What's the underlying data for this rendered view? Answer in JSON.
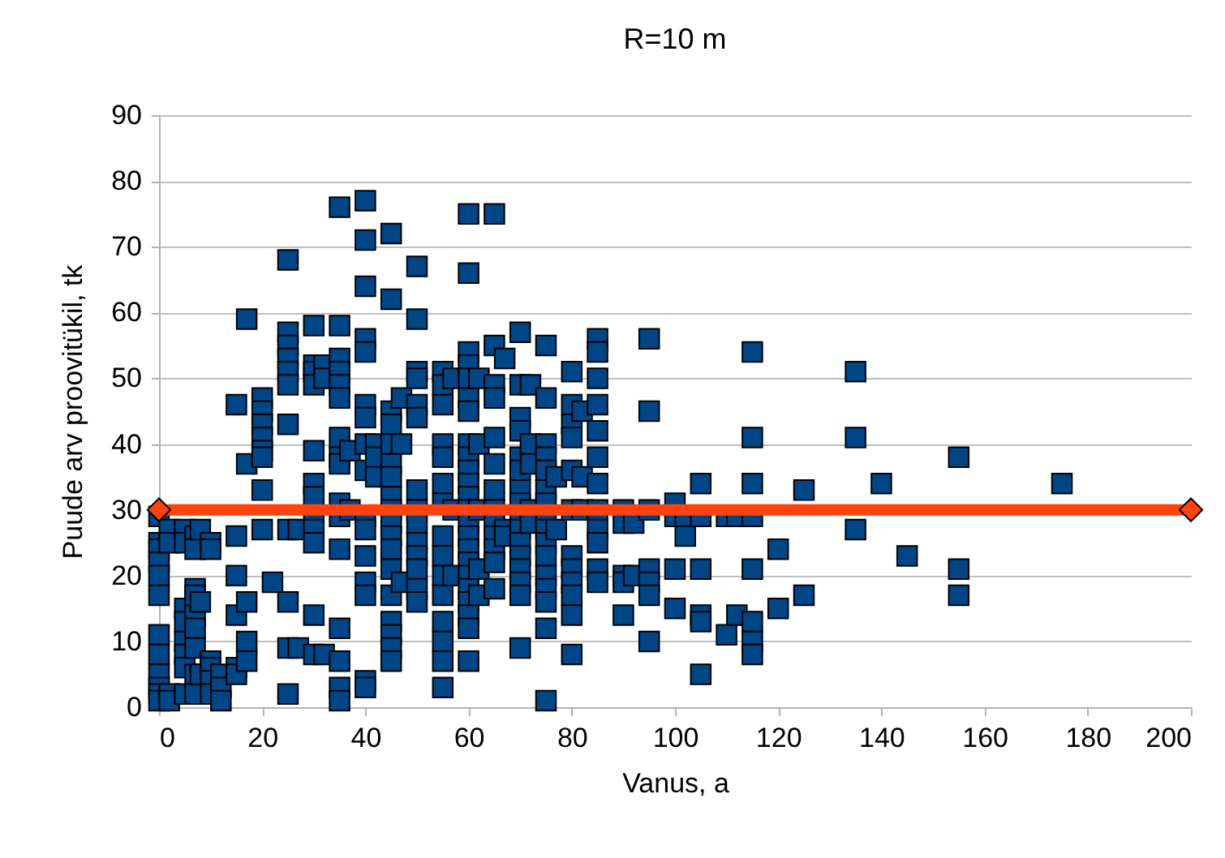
{
  "chart_data": {
    "type": "scatter",
    "title": "R=10 m",
    "xlabel": "Vanus, a",
    "ylabel": "Puude arv proovitükil, tk",
    "xlim": [
      0,
      200
    ],
    "xticks": [
      0,
      20,
      40,
      60,
      80,
      100,
      120,
      140,
      160,
      180,
      200
    ],
    "ylim": [
      0,
      90
    ],
    "yticks": [
      0,
      10,
      20,
      30,
      40,
      50,
      60,
      70,
      80,
      90
    ],
    "grid": "y",
    "series": [
      {
        "color": "#004586",
        "marker": "square",
        "x": [
          0,
          0,
          0,
          0,
          0,
          0,
          0,
          0,
          0,
          0,
          0,
          0,
          2,
          2,
          2,
          2,
          5,
          5,
          5,
          5,
          5,
          5,
          5,
          5,
          7,
          7,
          7,
          7,
          7,
          7,
          7,
          7,
          7,
          8,
          8,
          8,
          10,
          10,
          10,
          10,
          10,
          10,
          12,
          12,
          12,
          15,
          15,
          15,
          15,
          15,
          15,
          17,
          17,
          17,
          17,
          17,
          20,
          20,
          20,
          20,
          20,
          20,
          20,
          20,
          22,
          25,
          25,
          25,
          25,
          25,
          25,
          25,
          25,
          25,
          25,
          25,
          27,
          27,
          30,
          30,
          30,
          30,
          30,
          30,
          30,
          30,
          30,
          30,
          30,
          30,
          32,
          32,
          32,
          35,
          35,
          35,
          35,
          35,
          35,
          35,
          35,
          35,
          35,
          35,
          35,
          35,
          35,
          35,
          35,
          37,
          37,
          40,
          40,
          40,
          40,
          40,
          40,
          40,
          40,
          40,
          40,
          40,
          40,
          40,
          40,
          40,
          40,
          42,
          42,
          42,
          45,
          45,
          45,
          45,
          45,
          45,
          45,
          45,
          45,
          45,
          45,
          45,
          45,
          45,
          45,
          45,
          45,
          45,
          47,
          47,
          47,
          50,
          50,
          50,
          50,
          50,
          50,
          50,
          50,
          50,
          50,
          50,
          50,
          50,
          50,
          55,
          55,
          55,
          55,
          55,
          55,
          55,
          55,
          55,
          55,
          55,
          55,
          55,
          55,
          55,
          57,
          57,
          57,
          60,
          60,
          60,
          60,
          60,
          60,
          60,
          60,
          60,
          60,
          60,
          60,
          60,
          60,
          60,
          60,
          60,
          60,
          60,
          60,
          60,
          60,
          60,
          62,
          62,
          62,
          62,
          62,
          65,
          65,
          65,
          65,
          65,
          65,
          65,
          65,
          65,
          65,
          65,
          65,
          65,
          67,
          67,
          67,
          70,
          70,
          70,
          70,
          70,
          70,
          70,
          70,
          70,
          70,
          70,
          70,
          70,
          70,
          70,
          70,
          72,
          72,
          72,
          72,
          72,
          75,
          75,
          75,
          75,
          75,
          75,
          75,
          75,
          75,
          75,
          75,
          75,
          75,
          75,
          75,
          75,
          77,
          77,
          80,
          80,
          80,
          80,
          80,
          80,
          80,
          80,
          80,
          80,
          80,
          80,
          82,
          82,
          82,
          85,
          85,
          85,
          85,
          85,
          85,
          85,
          85,
          85,
          85,
          85,
          85,
          90,
          90,
          90,
          90,
          90,
          92,
          92,
          95,
          95,
          95,
          95,
          95,
          95,
          95,
          100,
          100,
          100,
          100,
          102,
          102,
          105,
          105,
          105,
          105,
          105,
          105,
          110,
          110,
          112,
          112,
          115,
          115,
          115,
          115,
          115,
          115,
          115,
          115,
          120,
          120,
          125,
          125,
          135,
          135,
          135,
          140,
          145,
          155,
          155,
          155,
          175
        ],
        "values": [
          29,
          25,
          24,
          22,
          20,
          17,
          11,
          8,
          5,
          3,
          2,
          1,
          27,
          25,
          2,
          1,
          27,
          25,
          15,
          13,
          10,
          8,
          6,
          2,
          26,
          24,
          18,
          17,
          14,
          12,
          9,
          5,
          2,
          27,
          16,
          5,
          25,
          24,
          7,
          6,
          4,
          2,
          5,
          3,
          1,
          46,
          26,
          20,
          14,
          6,
          5,
          59,
          37,
          16,
          10,
          7,
          47,
          45,
          43,
          41,
          39,
          38,
          33,
          27,
          19,
          68,
          57,
          55,
          53,
          51,
          49,
          43,
          27,
          16,
          9,
          2,
          27,
          9,
          58,
          52,
          51,
          49,
          39,
          34,
          32,
          29,
          27,
          25,
          14,
          8,
          52,
          50,
          8,
          76,
          58,
          53,
          51,
          49,
          47,
          41,
          38,
          37,
          31,
          29,
          24,
          12,
          7,
          3,
          1,
          39,
          30,
          77,
          71,
          64,
          56,
          54,
          46,
          44,
          40,
          36,
          29,
          27,
          23,
          19,
          17,
          4,
          3,
          40,
          38,
          35,
          72,
          62,
          45,
          43,
          40,
          37,
          35,
          32,
          30,
          28,
          26,
          24,
          21,
          17,
          13,
          11,
          9,
          7,
          47,
          40,
          19,
          67,
          59,
          51,
          50,
          46,
          44,
          33,
          30,
          28,
          25,
          23,
          21,
          18,
          16,
          51,
          49,
          46,
          40,
          38,
          34,
          31,
          26,
          23,
          20,
          17,
          13,
          10,
          7,
          3,
          50,
          30,
          20,
          75,
          66,
          54,
          52,
          50,
          47,
          45,
          40,
          38,
          36,
          34,
          32,
          30,
          28,
          26,
          24,
          22,
          20,
          18,
          16,
          14,
          12,
          7,
          50,
          40,
          30,
          21,
          17,
          75,
          55,
          49,
          47,
          41,
          37,
          33,
          30,
          28,
          26,
          24,
          22,
          18,
          53,
          27,
          26,
          57,
          49,
          44,
          42,
          38,
          36,
          33,
          31,
          29,
          27,
          25,
          23,
          21,
          19,
          17,
          9,
          49,
          40,
          37,
          30,
          28,
          55,
          47,
          40,
          38,
          36,
          33,
          31,
          29,
          27,
          25,
          23,
          20,
          18,
          16,
          12,
          1,
          35,
          27,
          51,
          46,
          43,
          41,
          36,
          30,
          23,
          21,
          19,
          17,
          14,
          8,
          45,
          35,
          30,
          56,
          54,
          50,
          46,
          42,
          38,
          34,
          30,
          27,
          25,
          21,
          19,
          30,
          28,
          20,
          19,
          14,
          28,
          20,
          56,
          45,
          30,
          21,
          19,
          17,
          10,
          31,
          29,
          21,
          15,
          29,
          26,
          34,
          29,
          21,
          14,
          13,
          5,
          29,
          11,
          29,
          14,
          54,
          41,
          34,
          29,
          21,
          13,
          10,
          8,
          24,
          15,
          33,
          17,
          51,
          41,
          27,
          34,
          23,
          38,
          21,
          17,
          34
        ]
      },
      {
        "type": "line",
        "color": "#ff420e",
        "marker": "diamond",
        "x": [
          0,
          200
        ],
        "values": [
          30,
          30
        ]
      }
    ]
  }
}
